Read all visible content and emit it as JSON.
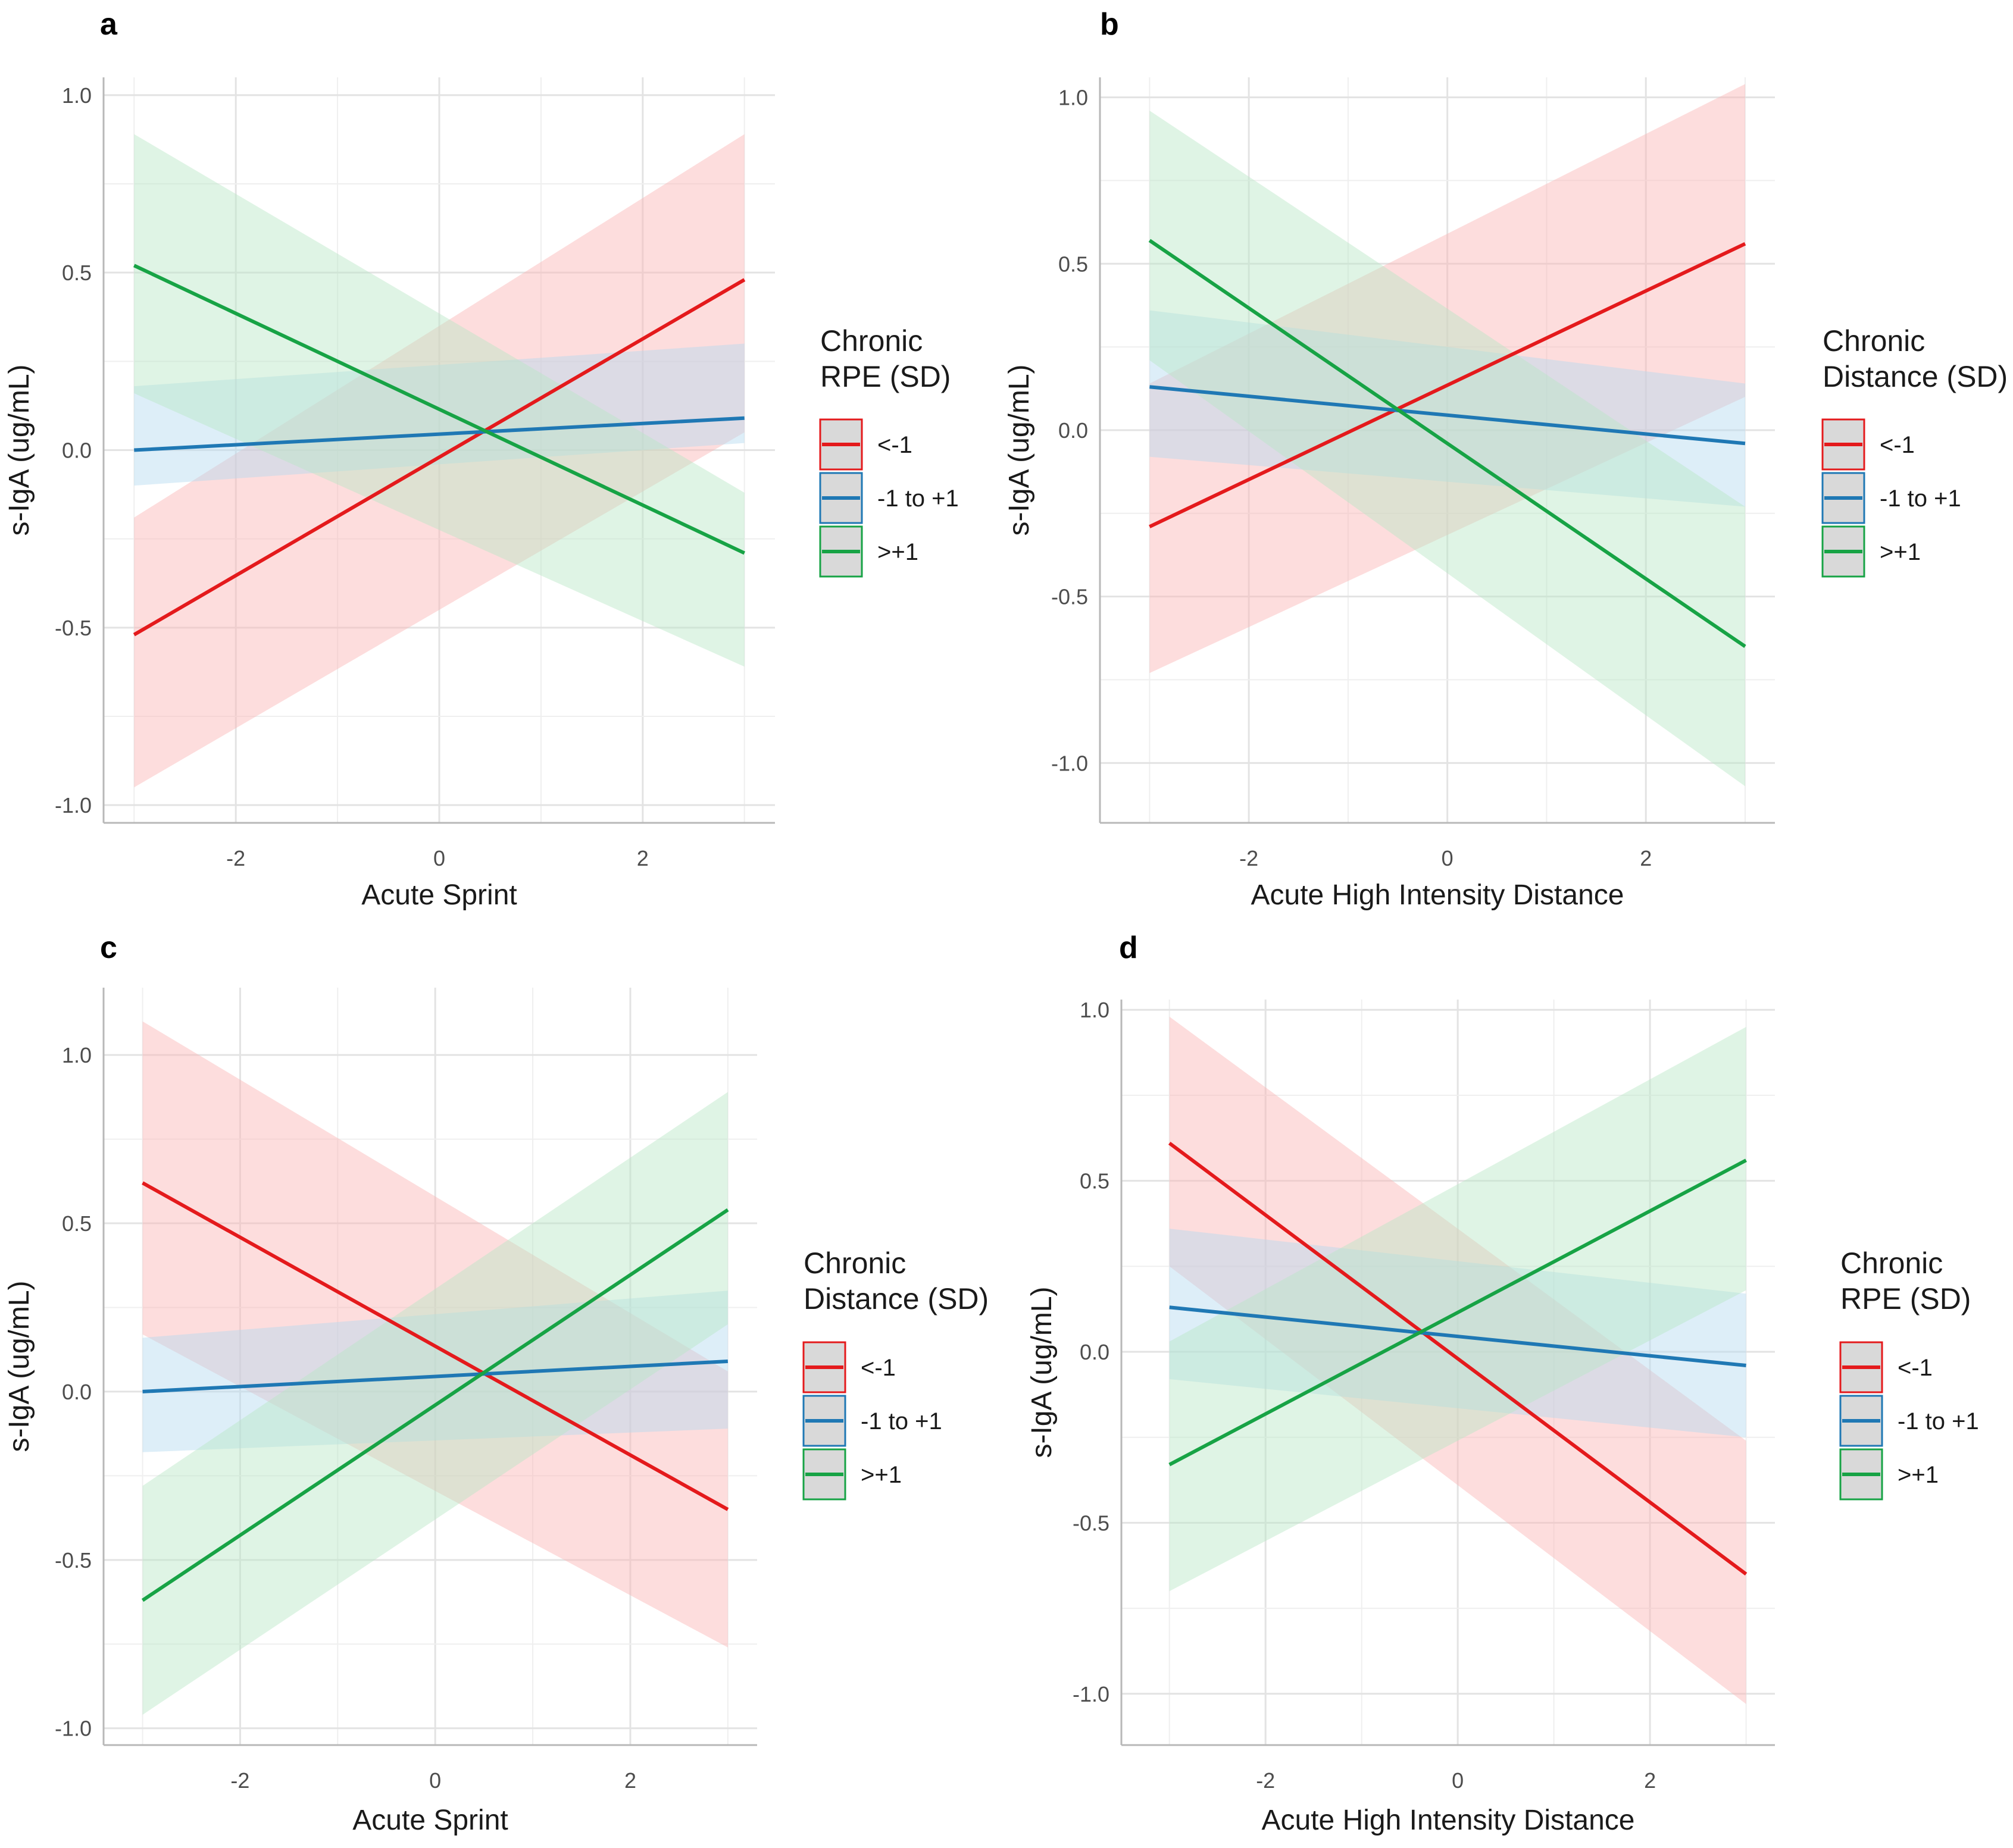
{
  "chart_data": [
    {
      "panel": "a",
      "type": "line",
      "xlabel": "Acute Sprint",
      "ylabel": "s-IgA (ug/mL)",
      "xlim": [
        -3.3,
        3.3
      ],
      "ylim": [
        -1.05,
        1.05
      ],
      "x_ticks": [
        -2,
        0,
        2
      ],
      "x_tick_labels": [
        "-2",
        "0",
        "2"
      ],
      "y_ticks": [
        -1.0,
        -0.5,
        0.0,
        0.5,
        1.0
      ],
      "y_tick_labels": [
        "-1.0",
        "-0.5",
        "0.0",
        "0.5",
        "1.0"
      ],
      "legend_title": [
        "Chronic",
        "RPE (SD)"
      ],
      "series": [
        {
          "name": "<-1",
          "color": "#e41a1c",
          "fill": "#fbb4b4",
          "x": [
            -3,
            3
          ],
          "y": [
            -0.52,
            0.48
          ],
          "lower": [
            -0.95,
            0.05
          ],
          "upper": [
            -0.19,
            0.89
          ]
        },
        {
          "name": "-1 to +1",
          "color": "#1f78b4",
          "fill": "#b3d9ef",
          "x": [
            -3,
            3
          ],
          "y": [
            0.0,
            0.09
          ],
          "lower": [
            -0.1,
            0.02
          ],
          "upper": [
            0.18,
            0.3
          ]
        },
        {
          "name": ">+1",
          "color": "#17a345",
          "fill": "#b8e6c6",
          "x": [
            -3,
            3
          ],
          "y": [
            0.52,
            -0.29
          ],
          "lower": [
            0.16,
            -0.61
          ],
          "upper": [
            0.89,
            -0.12
          ]
        }
      ]
    },
    {
      "panel": "b",
      "type": "line",
      "xlabel": "Acute High Intensity Distance",
      "ylabel": "s-IgA (ug/mL)",
      "xlim": [
        -3.5,
        3.3
      ],
      "ylim": [
        -1.18,
        1.06
      ],
      "x_ticks": [
        -2,
        0,
        2
      ],
      "x_tick_labels": [
        "-2",
        "0",
        "2"
      ],
      "y_ticks": [
        -1.0,
        -0.5,
        0.0,
        0.5,
        1.0
      ],
      "y_tick_labels": [
        "-1.0",
        "-0.5",
        "0.0",
        "0.5",
        "1.0"
      ],
      "legend_title": [
        "Chronic",
        "Distance (SD)"
      ],
      "series": [
        {
          "name": "<-1",
          "color": "#e41a1c",
          "fill": "#fbb4b4",
          "x": [
            -3,
            3
          ],
          "y": [
            -0.29,
            0.56
          ],
          "lower": [
            -0.73,
            0.1
          ],
          "upper": [
            0.14,
            1.04
          ]
        },
        {
          "name": "-1 to +1",
          "color": "#1f78b4",
          "fill": "#b3d9ef",
          "x": [
            -3,
            3
          ],
          "y": [
            0.13,
            -0.04
          ],
          "lower": [
            -0.08,
            -0.23
          ],
          "upper": [
            0.36,
            0.14
          ]
        },
        {
          "name": ">+1",
          "color": "#17a345",
          "fill": "#b8e6c6",
          "x": [
            -3,
            3
          ],
          "y": [
            0.57,
            -0.65
          ],
          "lower": [
            0.21,
            -1.07
          ],
          "upper": [
            0.96,
            -0.23
          ]
        }
      ]
    },
    {
      "panel": "c",
      "type": "line",
      "xlabel": "Acute Sprint",
      "ylabel": "s-IgA (ug/mL)",
      "xlim": [
        -3.4,
        3.3
      ],
      "ylim": [
        -1.05,
        1.2
      ],
      "x_ticks": [
        -2,
        0,
        2
      ],
      "x_tick_labels": [
        "-2",
        "0",
        "2"
      ],
      "y_ticks": [
        -1.0,
        -0.5,
        0.0,
        0.5,
        1.0
      ],
      "y_tick_labels": [
        "-1.0",
        "-0.5",
        "0.0",
        "0.5",
        "1.0"
      ],
      "legend_title": [
        "Chronic",
        "Distance (SD)"
      ],
      "series": [
        {
          "name": "<-1",
          "color": "#e41a1c",
          "fill": "#fbb4b4",
          "x": [
            -3,
            3
          ],
          "y": [
            0.62,
            -0.35
          ],
          "lower": [
            0.17,
            -0.76
          ],
          "upper": [
            1.1,
            0.06
          ]
        },
        {
          "name": "-1 to +1",
          "color": "#1f78b4",
          "fill": "#b3d9ef",
          "x": [
            -3,
            3
          ],
          "y": [
            0.0,
            0.09
          ],
          "lower": [
            -0.18,
            -0.11
          ],
          "upper": [
            0.16,
            0.3
          ]
        },
        {
          "name": ">+1",
          "color": "#17a345",
          "fill": "#b8e6c6",
          "x": [
            -3,
            3
          ],
          "y": [
            -0.62,
            0.54
          ],
          "lower": [
            -0.96,
            0.2
          ],
          "upper": [
            -0.28,
            0.89
          ]
        }
      ]
    },
    {
      "panel": "d",
      "type": "line",
      "xlabel": "Acute High Intensity Distance",
      "ylabel": "s-IgA (ug/mL)",
      "xlim": [
        -3.5,
        3.3
      ],
      "ylim": [
        -1.15,
        1.03
      ],
      "x_ticks": [
        -2,
        0,
        2
      ],
      "x_tick_labels": [
        "-2",
        "0",
        "2"
      ],
      "y_ticks": [
        -1.0,
        -0.5,
        0.0,
        0.5,
        1.0
      ],
      "y_tick_labels": [
        "-1.0",
        "-0.5",
        "0.0",
        "0.5",
        "1.0"
      ],
      "legend_title": [
        "Chronic",
        "RPE (SD)"
      ],
      "series": [
        {
          "name": "<-1",
          "color": "#e41a1c",
          "fill": "#fbb4b4",
          "x": [
            -3,
            3
          ],
          "y": [
            0.61,
            -0.65
          ],
          "lower": [
            0.25,
            -1.03
          ],
          "upper": [
            0.98,
            -0.26
          ]
        },
        {
          "name": "-1 to +1",
          "color": "#1f78b4",
          "fill": "#b3d9ef",
          "x": [
            -3,
            3
          ],
          "y": [
            0.13,
            -0.04
          ],
          "lower": [
            -0.08,
            -0.25
          ],
          "upper": [
            0.36,
            0.17
          ]
        },
        {
          "name": ">+1",
          "color": "#17a345",
          "fill": "#b8e6c6",
          "x": [
            -3,
            3
          ],
          "y": [
            -0.33,
            0.56
          ],
          "lower": [
            -0.7,
            0.18
          ],
          "upper": [
            0.03,
            0.95
          ]
        }
      ]
    }
  ]
}
